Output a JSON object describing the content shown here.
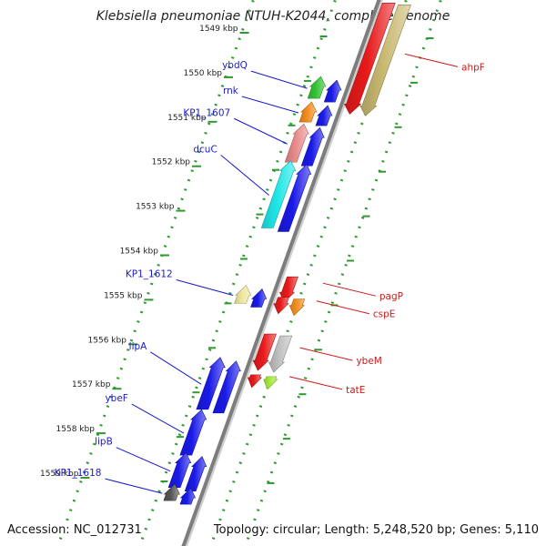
{
  "title": "Klebsiella pneumoniae NTUH-K2044, complete genome",
  "footer": {
    "accession": "Accession: NC_012731",
    "topology": "Topology: circular; Length: 5,248,520 bp; Genes: 5,110"
  },
  "colors": {
    "background": "#ffffff",
    "backbone": "#7d7d7d",
    "tick_dots": "#2f9a2f",
    "tick_label": "#222222",
    "label_left": "#1a1acc",
    "label_right": "#cc1a1a"
  },
  "ticks": [
    "1549 kbp",
    "1550 kbp",
    "1551 kbp",
    "1552 kbp",
    "1553 kbp",
    "1554 kbp",
    "1555 kbp",
    "1556 kbp",
    "1557 kbp",
    "1558 kbp",
    "1559 kbp"
  ],
  "genes_left": [
    {
      "name": "ybdQ",
      "kbp": 1550.25,
      "color": "#35c235"
    },
    {
      "name": "rnk",
      "kbp": 1550.8,
      "color": "#f28c1c"
    },
    {
      "name": "KP1_1607",
      "kbp": 1551.5,
      "color": "#e88a8a"
    },
    {
      "name": "dcuC",
      "kbp": 1552.65,
      "color": "#1ee6e6"
    },
    {
      "name": "KP1_1612",
      "kbp": 1554.9,
      "color": "#f0e6a0"
    },
    {
      "name": "lipA",
      "kbp": 1556.9,
      "color": "#1a1ae8"
    },
    {
      "name": "ybeF",
      "kbp": 1558.0,
      "color": "#1a1ae8"
    },
    {
      "name": "lipB",
      "kbp": 1558.85,
      "color": "#1a1ae8"
    },
    {
      "name": "KP1_1618",
      "kbp": 1559.35,
      "color": "#555555"
    }
  ],
  "genes_right": [
    {
      "name": "ahpF",
      "kbp": 1549.6,
      "color": "#e81a1a"
    },
    {
      "name": "pagP",
      "kbp": 1554.75,
      "color": "#e81a1a"
    },
    {
      "name": "cspE",
      "kbp": 1555.15,
      "color": "#f28c1c"
    },
    {
      "name": "ybeM",
      "kbp": 1556.2,
      "color": "#c0c0c0"
    },
    {
      "name": "tatE",
      "kbp": 1556.85,
      "color": "#a6e83a"
    }
  ]
}
